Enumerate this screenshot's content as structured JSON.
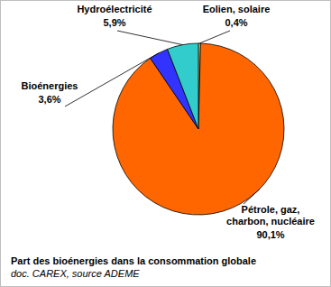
{
  "chart_data": {
    "type": "pie",
    "title": "Part des bioénergies dans la consommation globale",
    "subtitle": "doc. CAREX, source ADEME",
    "categories": [
      "Eolien, solaire",
      "Pétrole, gaz, charbon, nucléaire",
      "Bioénergies",
      "Hydroélectricité"
    ],
    "values": [
      0.4,
      90.1,
      3.6,
      5.9
    ],
    "value_labels": [
      "0,4%",
      "90,1%",
      "3,6%",
      "5,9%"
    ],
    "colors": [
      "#FFFF99",
      "#FF6600",
      "#3333FF",
      "#33CCCC"
    ],
    "data_labels": true
  }
}
